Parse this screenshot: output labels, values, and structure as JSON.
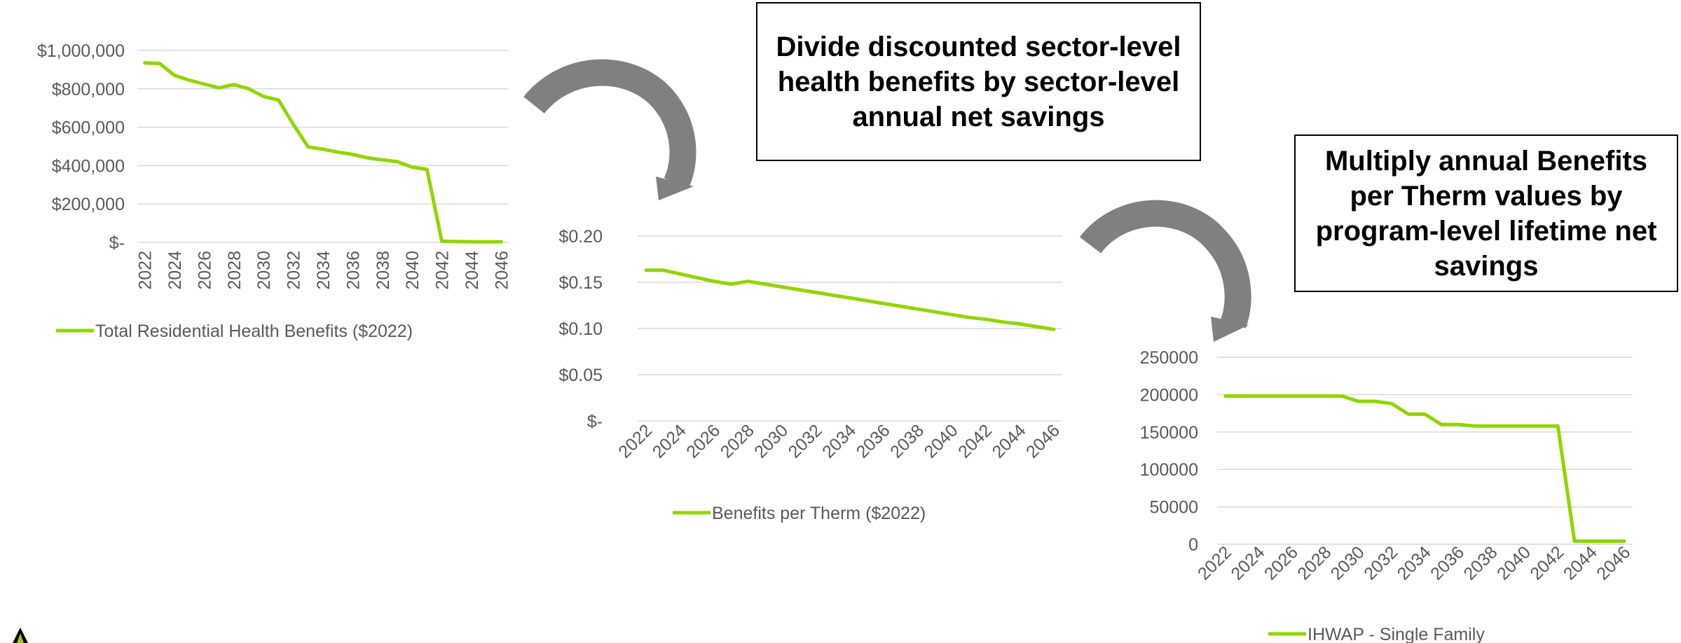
{
  "callouts": {
    "step1": "Divide discounted sector-level health benefits by sector-level annual net savings",
    "step2": "Multiply annual Benefits per Therm values by program-level lifetime net savings"
  },
  "colors": {
    "series": "#92d400",
    "arrow": "#808080",
    "grid": "#d9d9d9",
    "axis_text": "#595959"
  },
  "icons": [
    "curved-arrow-icon",
    "curved-arrow-icon",
    "logo-icon"
  ],
  "chart_data": [
    {
      "type": "line",
      "years": [
        2022,
        2023,
        2024,
        2025,
        2026,
        2027,
        2028,
        2029,
        2030,
        2031,
        2032,
        2033,
        2034,
        2035,
        2036,
        2037,
        2038,
        2039,
        2040,
        2041,
        2042,
        2043,
        2044,
        2045,
        2046
      ],
      "xticks": [
        "2022",
        "2024",
        "2026",
        "2028",
        "2030",
        "2032",
        "2034",
        "2036",
        "2038",
        "2040",
        "2042",
        "2044",
        "2046"
      ],
      "yticks": [
        0,
        200000,
        400000,
        600000,
        800000,
        1000000
      ],
      "ytick_labels": [
        "$-",
        "$200,000",
        "$400,000",
        "$600,000",
        "$800,000",
        "$1,000,000"
      ],
      "ylim": [
        0,
        1000000
      ],
      "grid": true,
      "legend_position": "bottom",
      "series": [
        {
          "name": "Total Residential Health Benefits ($2022)",
          "values": [
            935000,
            932000,
            870000,
            845000,
            825000,
            805000,
            822000,
            800000,
            760000,
            742000,
            615000,
            497000,
            485000,
            470000,
            458000,
            440000,
            430000,
            420000,
            392000,
            380000,
            5000,
            4000,
            3000,
            3000,
            3000
          ]
        }
      ]
    },
    {
      "type": "line",
      "years": [
        2022,
        2023,
        2024,
        2025,
        2026,
        2027,
        2028,
        2029,
        2030,
        2031,
        2032,
        2033,
        2034,
        2035,
        2036,
        2037,
        2038,
        2039,
        2040,
        2041,
        2042,
        2043,
        2044,
        2045,
        2046
      ],
      "xticks": [
        "2022",
        "2024",
        "2026",
        "2028",
        "2030",
        "2032",
        "2034",
        "2036",
        "2038",
        "2040",
        "2042",
        "2044",
        "2046"
      ],
      "yticks": [
        0,
        0.05,
        0.1,
        0.15,
        0.2
      ],
      "ytick_labels": [
        "$-",
        "$0.05",
        "$0.10",
        "$0.15",
        "$0.20"
      ],
      "ylim": [
        0,
        0.2
      ],
      "grid": true,
      "legend_position": "bottom",
      "series": [
        {
          "name": "Benefits per Therm ($2022)",
          "values": [
            0.163,
            0.163,
            0.159,
            0.155,
            0.151,
            0.148,
            0.151,
            0.148,
            0.145,
            0.142,
            0.139,
            0.136,
            0.133,
            0.13,
            0.127,
            0.124,
            0.121,
            0.118,
            0.115,
            0.112,
            0.11,
            0.107,
            0.105,
            0.102,
            0.099
          ]
        }
      ]
    },
    {
      "type": "line",
      "years": [
        2022,
        2023,
        2024,
        2025,
        2026,
        2027,
        2028,
        2029,
        2030,
        2031,
        2032,
        2033,
        2034,
        2035,
        2036,
        2037,
        2038,
        2039,
        2040,
        2041,
        2042,
        2043,
        2044,
        2045,
        2046
      ],
      "xticks": [
        "2022",
        "2024",
        "2026",
        "2028",
        "2030",
        "2032",
        "2034",
        "2036",
        "2038",
        "2040",
        "2042",
        "2044",
        "2046"
      ],
      "yticks": [
        0,
        50000,
        100000,
        150000,
        200000,
        250000
      ],
      "ytick_labels": [
        "0",
        "50000",
        "100000",
        "150000",
        "200000",
        "250000"
      ],
      "ylim": [
        0,
        250000
      ],
      "grid": true,
      "legend_position": "bottom",
      "series": [
        {
          "name": "IHWAP - Single Family",
          "values": [
            198000,
            198000,
            198000,
            198000,
            198000,
            198000,
            198000,
            198000,
            191000,
            191000,
            188000,
            174000,
            174000,
            160000,
            160000,
            158000,
            158000,
            158000,
            158000,
            158000,
            158000,
            4000,
            4000,
            4000,
            4000
          ]
        }
      ]
    }
  ]
}
